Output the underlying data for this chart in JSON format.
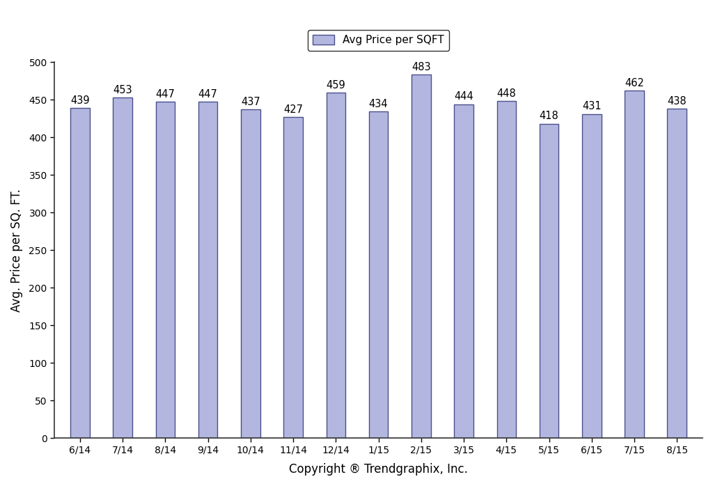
{
  "categories": [
    "6/14",
    "7/14",
    "8/14",
    "9/14",
    "10/14",
    "11/14",
    "12/14",
    "1/15",
    "2/15",
    "3/15",
    "4/15",
    "5/15",
    "6/15",
    "7/15",
    "8/15"
  ],
  "values": [
    439,
    453,
    447,
    447,
    437,
    427,
    459,
    434,
    483,
    444,
    448,
    418,
    431,
    462,
    438
  ],
  "bar_color": "#b3b7e0",
  "bar_edge_color": "#4a4f8a",
  "ylabel": "Avg. Price per SQ. FT.",
  "xlabel": "Copyright ® Trendgraphix, Inc.",
  "legend_label": "Avg Price per SQFT",
  "ylim": [
    0,
    500
  ],
  "yticks": [
    0,
    50,
    100,
    150,
    200,
    250,
    300,
    350,
    400,
    450,
    500
  ],
  "background_color": "#ffffff",
  "bar_width": 0.45,
  "annotation_fontsize": 10.5,
  "axis_label_fontsize": 12,
  "tick_fontsize": 10,
  "legend_fontsize": 11,
  "spine_color": "#333333"
}
